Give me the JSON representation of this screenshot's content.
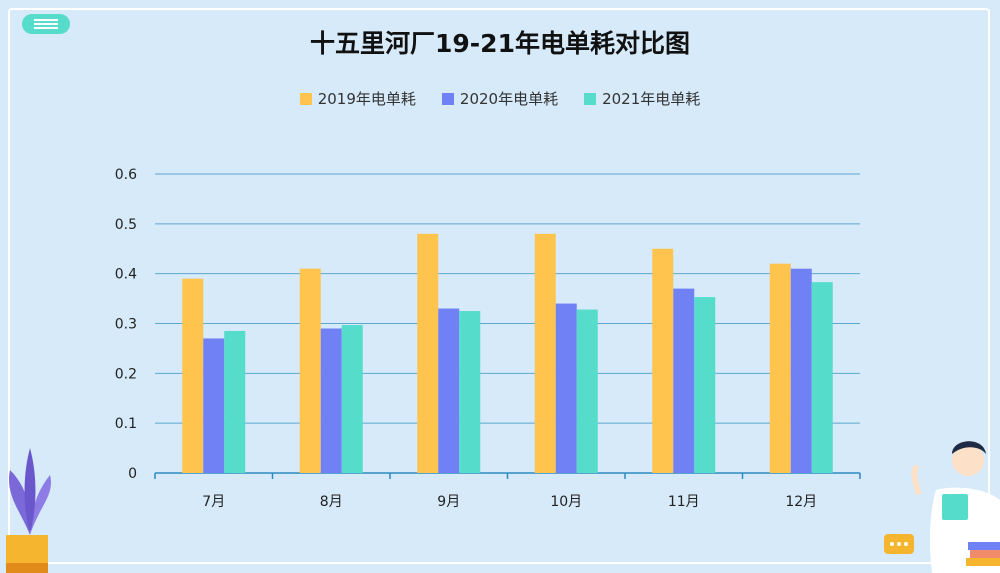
{
  "colors": {
    "series_2019": "#ffc44d",
    "series_2020": "#6f81f5",
    "series_2021": "#55dccb",
    "grid": "#5ea7cf",
    "axis": "#2a8bbf"
  },
  "chart_data": {
    "type": "bar",
    "title": "十五里河厂19-21年电单耗对比图",
    "categories": [
      "7月",
      "8月",
      "9月",
      "10月",
      "11月",
      "12月"
    ],
    "series": [
      {
        "name": "2019年电单耗",
        "values": [
          0.39,
          0.41,
          0.48,
          0.48,
          0.45,
          0.42
        ]
      },
      {
        "name": "2020年电单耗",
        "values": [
          0.27,
          0.29,
          0.33,
          0.34,
          0.37,
          0.41
        ]
      },
      {
        "name": "2021年电单耗",
        "values": [
          0.285,
          0.297,
          0.325,
          0.328,
          0.353,
          0.383
        ]
      }
    ],
    "y_ticks": [
      "0",
      "0.1",
      "0.2",
      "0.3",
      "0.4",
      "0.5",
      "0.6"
    ],
    "ylim": [
      0,
      0.6
    ],
    "grid": true,
    "legend_position": "top-center"
  }
}
